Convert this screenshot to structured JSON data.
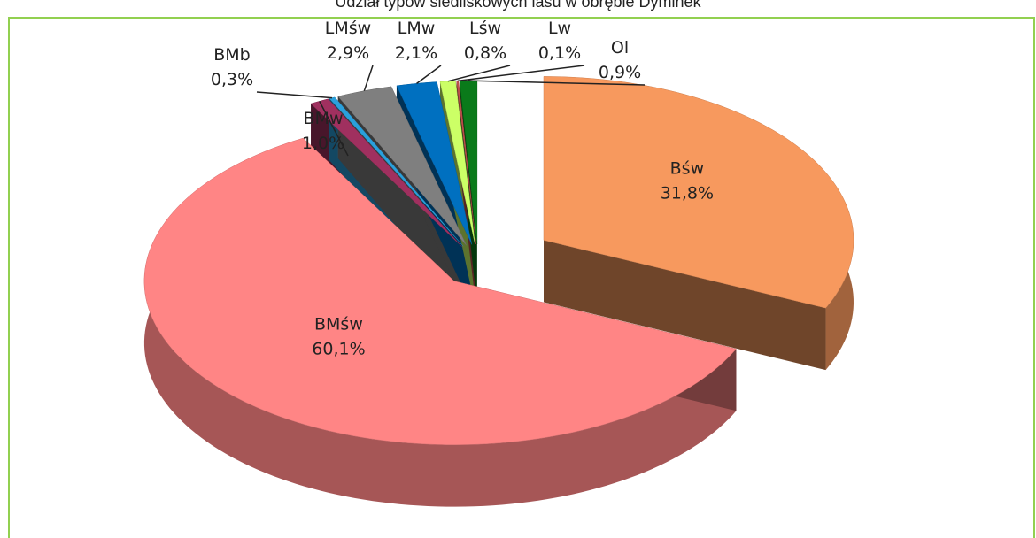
{
  "chart_data": {
    "type": "pie",
    "title": "Udział typów siedliskowych lasu w obrębie Dyminek",
    "categories": [
      "Bśw",
      "BMśw",
      "BMw",
      "BMb",
      "LMśw",
      "LMw",
      "Lśw",
      "Lw",
      "Ol"
    ],
    "values": [
      31.8,
      60.1,
      1.0,
      0.3,
      2.9,
      2.1,
      0.8,
      0.1,
      0.9
    ],
    "value_labels": [
      "31,8%",
      "60,1%",
      "1,0%",
      "0,3%",
      "2,9%",
      "2,1%",
      "0,8%",
      "0,1%",
      "0,9%"
    ],
    "colors": [
      "#f7995e",
      "#ff8585",
      "#a0305f",
      "#2aa0dc",
      "#7f7f7f",
      "#0070c0",
      "#ccff66",
      "#c0504d",
      "#0a7a1a"
    ]
  }
}
